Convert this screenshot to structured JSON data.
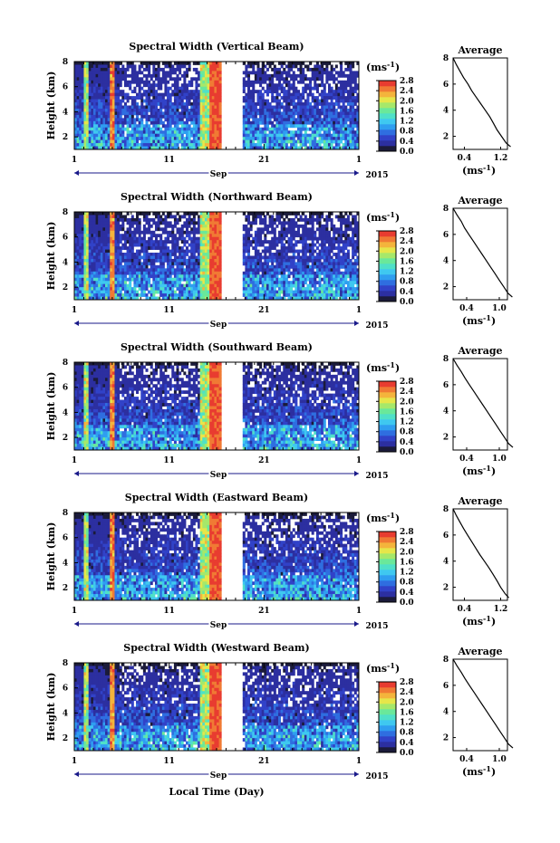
{
  "figure": {
    "xlabel": "Local Time (Day)",
    "month": "Sep",
    "year": "2015",
    "ylabel": "Height (km)",
    "unit_label": "(ms",
    "unit_sup": "-1",
    "avg_title": "Average",
    "x_ticks": [
      "1",
      "11",
      "21",
      "1"
    ],
    "y_ticks": [
      "8",
      "6",
      "4",
      "2"
    ]
  },
  "colors": {
    "scale": [
      "#1b1b3a",
      "#2c2fa0",
      "#3142c8",
      "#2f6ee0",
      "#2f9ef0",
      "#3fc8f0",
      "#4fe0c8",
      "#6ae89a",
      "#a6e86a",
      "#e6e64a",
      "#f4b43c",
      "#f07a34",
      "#e83c30"
    ],
    "no_data": "#ffffff"
  },
  "chart_data": [
    {
      "type": "heatmap",
      "title": "Spectral Width (Vertical Beam)",
      "xlabel": "Local Time (Day)",
      "ylabel": "Height (km)",
      "x_range": [
        "1 Sep 2015",
        "1 Oct 2015"
      ],
      "ylim": [
        1,
        8
      ],
      "colorbar": {
        "label": "(ms-1)",
        "ticks": [
          "2.8",
          "2.4",
          "2.0",
          "1.6",
          "1.2",
          "0.8",
          "0.4",
          "0.0"
        ],
        "range": [
          0.0,
          2.8
        ]
      },
      "average_profile": {
        "title": "Average",
        "xlabel": "(ms-1)",
        "x_ticks": [
          "0.4",
          "1.2"
        ],
        "y_ticks": [
          "8",
          "6",
          "4",
          "2"
        ],
        "heights": [
          8,
          7.5,
          7,
          6.5,
          6,
          5.5,
          5,
          4.5,
          4,
          3.5,
          3,
          2.5,
          2,
          1.5,
          1.2
        ],
        "values": [
          0.15,
          0.22,
          0.3,
          0.38,
          0.48,
          0.56,
          0.66,
          0.76,
          0.86,
          0.96,
          1.04,
          1.12,
          1.22,
          1.32,
          1.42
        ]
      }
    },
    {
      "type": "heatmap",
      "title": "Spectral Width (Northward Beam)",
      "xlabel": "Local Time (Day)",
      "ylabel": "Height (km)",
      "x_range": [
        "1 Sep 2015",
        "1 Oct 2015"
      ],
      "ylim": [
        1,
        8
      ],
      "colorbar": {
        "label": "(ms-1)",
        "ticks": [
          "2.8",
          "2.4",
          "2.0",
          "1.6",
          "1.2",
          "0.8",
          "0.4",
          "0.0"
        ],
        "range": [
          0.0,
          2.8
        ]
      },
      "average_profile": {
        "title": "Average",
        "xlabel": "(ms-1)",
        "x_ticks": [
          "0.4",
          "1.0"
        ],
        "y_ticks": [
          "8",
          "6",
          "4",
          "2"
        ],
        "heights": [
          8,
          7.5,
          7,
          6.5,
          6,
          5.5,
          5,
          4.5,
          4,
          3.5,
          3,
          2.5,
          2,
          1.5,
          1.2
        ],
        "values": [
          0.15,
          0.22,
          0.3,
          0.36,
          0.44,
          0.52,
          0.6,
          0.68,
          0.76,
          0.84,
          0.92,
          1.0,
          1.08,
          1.16,
          1.24
        ]
      }
    },
    {
      "type": "heatmap",
      "title": "Spectral Width (Southward Beam)",
      "xlabel": "Local Time (Day)",
      "ylabel": "Height (km)",
      "x_range": [
        "1 Sep 2015",
        "1 Oct 2015"
      ],
      "ylim": [
        1,
        8
      ],
      "colorbar": {
        "label": "(ms-1)",
        "ticks": [
          "2.8",
          "2.4",
          "2.0",
          "1.6",
          "1.2",
          "0.8",
          "0.4",
          "0.0"
        ],
        "range": [
          0.0,
          2.8
        ]
      },
      "average_profile": {
        "title": "Average",
        "xlabel": "(ms-1)",
        "x_ticks": [
          "0.4",
          "1.0"
        ],
        "y_ticks": [
          "8",
          "6",
          "4",
          "2"
        ],
        "heights": [
          8,
          7.5,
          7,
          6.5,
          6,
          5.5,
          5,
          4.5,
          4,
          3.5,
          3,
          2.5,
          2,
          1.5,
          1.2
        ],
        "values": [
          0.15,
          0.22,
          0.3,
          0.37,
          0.45,
          0.53,
          0.61,
          0.69,
          0.77,
          0.85,
          0.93,
          1.01,
          1.09,
          1.17,
          1.25
        ]
      }
    },
    {
      "type": "heatmap",
      "title": "Spectral Width (Eastward Beam)",
      "xlabel": "Local Time (Day)",
      "ylabel": "Height (km)",
      "x_range": [
        "1 Sep 2015",
        "1 Oct 2015"
      ],
      "ylim": [
        1,
        8
      ],
      "colorbar": {
        "label": "(ms-1)",
        "ticks": [
          "2.8",
          "2.4",
          "2.0",
          "1.6",
          "1.2",
          "0.8",
          "0.4",
          "0.0"
        ],
        "range": [
          0.0,
          2.8
        ]
      },
      "average_profile": {
        "title": "Average",
        "xlabel": "(ms-1)",
        "x_ticks": [
          "0.4",
          "1.2"
        ],
        "y_ticks": [
          "8",
          "6",
          "4",
          "2"
        ],
        "heights": [
          8,
          7.5,
          7,
          6.5,
          6,
          5.5,
          5,
          4.5,
          4,
          3.5,
          3,
          2.5,
          2,
          1.5,
          1.2
        ],
        "values": [
          0.15,
          0.22,
          0.3,
          0.38,
          0.47,
          0.56,
          0.65,
          0.74,
          0.84,
          0.94,
          1.03,
          1.12,
          1.2,
          1.3,
          1.38
        ]
      }
    },
    {
      "type": "heatmap",
      "title": "Spectral Width (Westward Beam)",
      "xlabel": "Local Time (Day)",
      "ylabel": "Height (km)",
      "x_range": [
        "1 Sep 2015",
        "1 Oct 2015"
      ],
      "ylim": [
        1,
        8
      ],
      "colorbar": {
        "label": "(ms-1)",
        "ticks": [
          "2.8",
          "2.4",
          "2.0",
          "1.6",
          "1.2",
          "0.8",
          "0.4",
          "0.0"
        ],
        "range": [
          0.0,
          2.8
        ]
      },
      "average_profile": {
        "title": "Average",
        "xlabel": "(ms-1)",
        "x_ticks": [
          "0.4",
          "1.0"
        ],
        "y_ticks": [
          "8",
          "6",
          "4",
          "2"
        ],
        "heights": [
          8,
          7.5,
          7,
          6.5,
          6,
          5.5,
          5,
          4.5,
          4,
          3.5,
          3,
          2.5,
          2,
          1.5,
          1.2
        ],
        "values": [
          0.15,
          0.22,
          0.3,
          0.37,
          0.45,
          0.53,
          0.61,
          0.69,
          0.77,
          0.85,
          0.93,
          1.01,
          1.09,
          1.17,
          1.25
        ]
      }
    }
  ]
}
